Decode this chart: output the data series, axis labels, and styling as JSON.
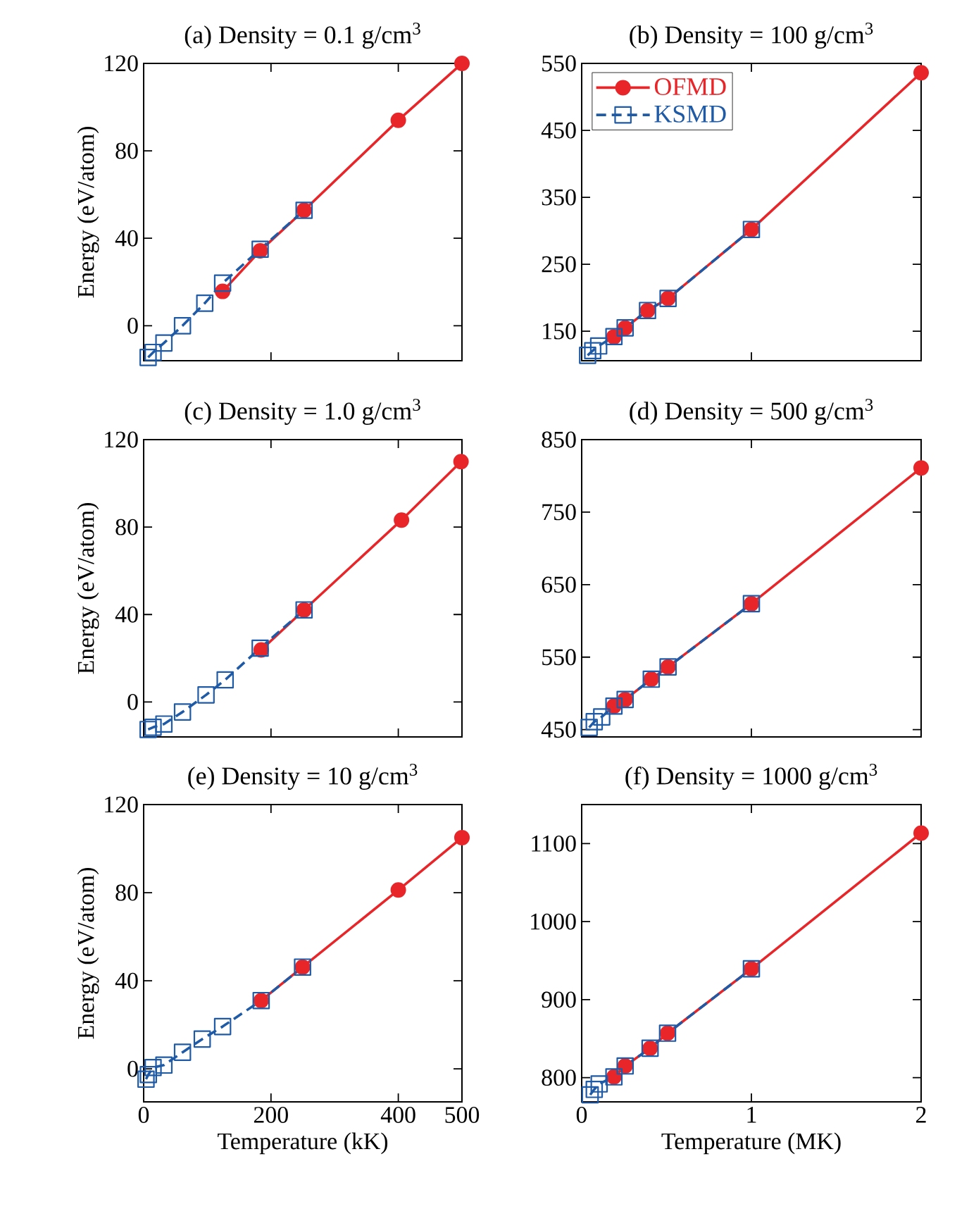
{
  "chart_data": [
    {
      "type": "line",
      "title": "(a) Density = 0.1 g/cm$^{3}$",
      "ylabel": "Energy (eV/atom)",
      "xlim": [
        0,
        500
      ],
      "xticks": [
        0,
        200,
        400,
        500
      ],
      "ylim": [
        -16,
        120
      ],
      "yticks": [
        0,
        40,
        80,
        120
      ],
      "tick_labels": "y",
      "legend": false,
      "series": [
        {
          "color": "#e8262a",
          "marker": "circle",
          "line_style": "solid",
          "x": [
            124,
            183,
            252,
            400,
            500
          ],
          "values": [
            15.7,
            34.3,
            52.8,
            94,
            120
          ]
        },
        {
          "color": "#1f5aa6",
          "marker": "square",
          "line_style": "dashed",
          "x": [
            7,
            14.8,
            31.8,
            61,
            96,
            124,
            183,
            252
          ],
          "values": [
            -14.5,
            -12.2,
            -7.9,
            0,
            10.3,
            19.5,
            35,
            52.8
          ]
        }
      ]
    },
    {
      "type": "line",
      "title": "(b) Density = 100 g/cm$^{3}$",
      "xlim": [
        0,
        2
      ],
      "xticks": [
        0,
        1,
        2
      ],
      "ylim": [
        106,
        550
      ],
      "yticks": [
        150,
        250,
        350,
        450,
        550
      ],
      "tick_labels": "y",
      "legend": "top left",
      "series": [
        {
          "name": "OFMD",
          "color": "#e8262a",
          "marker": "circle",
          "line_style": "solid",
          "x": [
            0.19,
            0.256,
            0.388,
            0.509,
            1.0,
            2.0
          ],
          "values": [
            141.6,
            155,
            181,
            199,
            302,
            536
          ]
        },
        {
          "name": "KSMD",
          "color": "#1f5aa6",
          "marker": "square",
          "line_style": "dashed",
          "x": [
            0.035,
            0.065,
            0.1,
            0.19,
            0.256,
            0.388,
            0.509,
            1.0
          ],
          "values": [
            114,
            121,
            128,
            142,
            155,
            181,
            199,
            302
          ]
        }
      ]
    },
    {
      "type": "line",
      "title": "(c) Density = 1.0 g/cm$^{3}$",
      "ylabel": "Energy (eV/atom)",
      "xlim": [
        0,
        500
      ],
      "xticks": [
        0,
        200,
        400,
        500
      ],
      "ylim": [
        -16,
        120
      ],
      "yticks": [
        0,
        40,
        80,
        120
      ],
      "tick_labels": "y",
      "legend": false,
      "series": [
        {
          "color": "#e8262a",
          "marker": "circle",
          "line_style": "solid",
          "x": [
            184.6,
            252,
            405,
            498.5
          ],
          "values": [
            23.8,
            42.1,
            83.2,
            109.9
          ]
        },
        {
          "color": "#1f5aa6",
          "marker": "square",
          "line_style": "dashed",
          "x": [
            7,
            14.8,
            31.8,
            61,
            98,
            128,
            183,
            252
          ],
          "values": [
            -12.6,
            -11.6,
            -10.1,
            -4.6,
            3.2,
            10.1,
            24.6,
            42.1
          ]
        }
      ]
    },
    {
      "type": "line",
      "title": "(d) Density = 500 g/cm$^{3}$",
      "xlim": [
        0,
        2
      ],
      "xticks": [
        0,
        1,
        2
      ],
      "ylim": [
        440,
        850
      ],
      "yticks": [
        450,
        550,
        650,
        750,
        850
      ],
      "tick_labels": "y",
      "legend": false,
      "series": [
        {
          "color": "#e8262a",
          "marker": "circle",
          "line_style": "solid",
          "x": [
            0.19,
            0.256,
            0.41,
            0.509,
            1.0,
            2.0
          ],
          "values": [
            482.5,
            491.6,
            519.6,
            536.5,
            623.7,
            811
          ]
        },
        {
          "color": "#1f5aa6",
          "marker": "square",
          "line_style": "dashed",
          "x": [
            0.044,
            0.074,
            0.118,
            0.19,
            0.256,
            0.41,
            0.509,
            1.0
          ],
          "values": [
            453,
            461,
            467.6,
            482.5,
            491.6,
            519.6,
            536.5,
            623.7
          ]
        }
      ]
    },
    {
      "type": "line",
      "title": "(e) Density = 10 g/cm$^{3}$",
      "xlabel": "Temperature (kK)",
      "ylabel": "Energy (eV/atom)",
      "xlim": [
        0,
        500
      ],
      "xticks": [
        0,
        200,
        400,
        500
      ],
      "ylim": [
        -15,
        120
      ],
      "yticks": [
        0,
        40,
        80,
        120
      ],
      "legend": false,
      "series": [
        {
          "color": "#e8262a",
          "marker": "circle",
          "line_style": "solid",
          "x": [
            184.6,
            249.6,
            400,
            500
          ],
          "values": [
            31,
            46.2,
            81.2,
            105
          ]
        },
        {
          "color": "#1f5aa6",
          "marker": "square",
          "line_style": "dashed",
          "x": [
            3.7,
            7.4,
            14.8,
            31.8,
            61,
            92,
            124,
            184.6,
            249.6
          ],
          "values": [
            -4.7,
            -2.6,
            0.6,
            1.7,
            7.5,
            13.5,
            19.2,
            31,
            46.2
          ]
        }
      ]
    },
    {
      "type": "line",
      "title": "(f) Density = 1000 g/cm$^{3}$",
      "xlabel": "Temperature (MK)",
      "xlim": [
        0,
        2
      ],
      "xticks": [
        0,
        1,
        2
      ],
      "ylim": [
        769,
        1150
      ],
      "yticks": [
        800,
        900,
        1000,
        1100
      ],
      "legend": false,
      "series": [
        {
          "color": "#e8262a",
          "marker": "circle",
          "line_style": "solid",
          "x": [
            0.19,
            0.256,
            0.403,
            0.506,
            1.0,
            2.0
          ],
          "values": [
            801,
            815,
            837.7,
            857,
            939.5,
            1113.5
          ]
        },
        {
          "color": "#1f5aa6",
          "marker": "square",
          "line_style": "dashed",
          "x": [
            0.05,
            0.074,
            0.103,
            0.19,
            0.256,
            0.403,
            0.506,
            1.0
          ],
          "values": [
            778,
            785,
            792,
            801,
            815,
            837.7,
            857,
            939.5
          ]
        }
      ]
    }
  ]
}
